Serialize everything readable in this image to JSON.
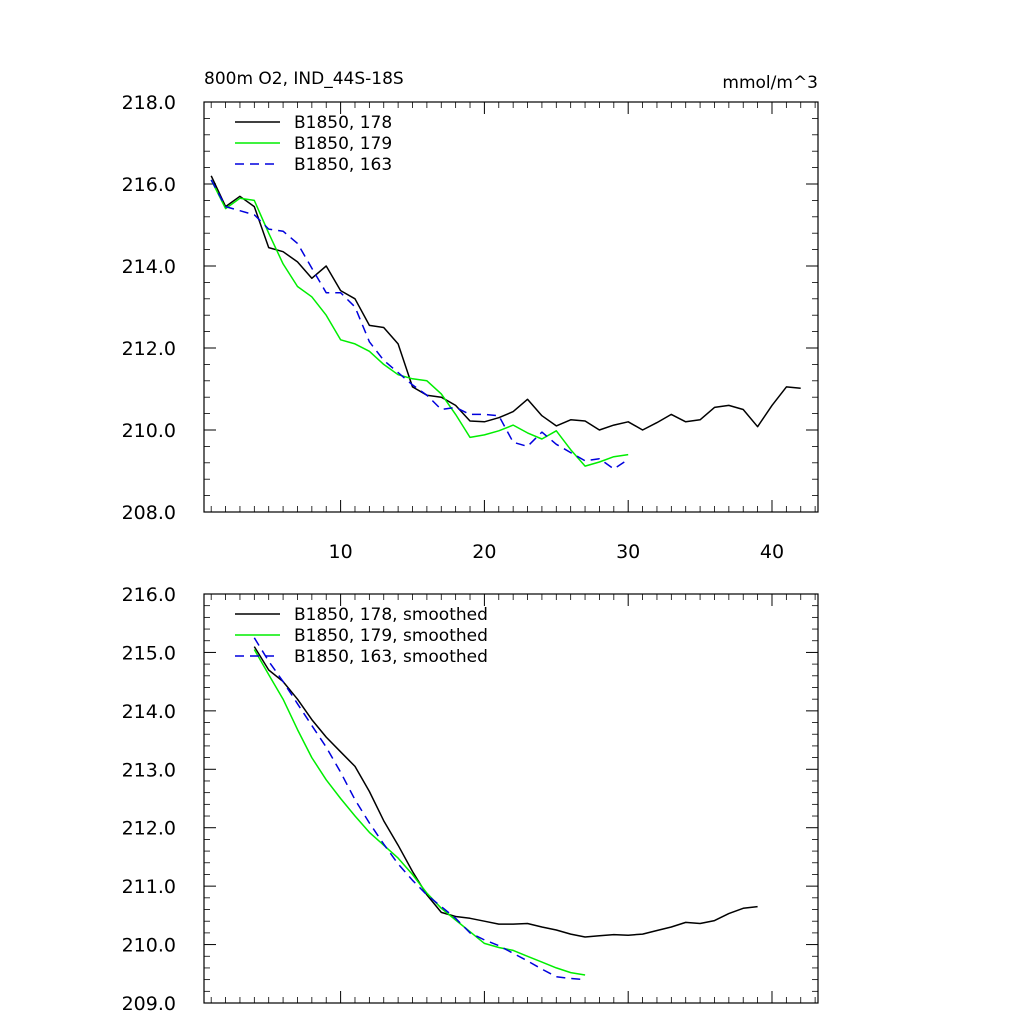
{
  "header": {
    "title": "800m O2, IND_44S-18S",
    "units": "mmol/m^3"
  },
  "colors": {
    "s178": "#000000",
    "s179": "#00ee00",
    "s163": "#0000dd",
    "axis": "#000000"
  },
  "chart_data": [
    {
      "type": "line",
      "title": "800m O2, IND_44S-18S",
      "units": "mmol/m^3",
      "xlim": [
        0.5,
        43.2
      ],
      "ylim": [
        208.0,
        218.0
      ],
      "xticks": [
        10,
        20,
        30,
        40
      ],
      "xtick_labels": [
        "10",
        "20",
        "30",
        "40"
      ],
      "yticks": [
        208.0,
        210.0,
        212.0,
        214.0,
        216.0,
        218.0
      ],
      "ytick_labels": [
        "208.0",
        "210.0",
        "212.0",
        "214.0",
        "216.0",
        "218.0"
      ],
      "legend": "top-left",
      "series": [
        {
          "name": "B1850, 178",
          "color_key": "s178",
          "dash": false,
          "x": [
            1,
            2,
            3,
            4,
            5,
            6,
            7,
            8,
            9,
            10,
            11,
            12,
            13,
            14,
            15,
            16,
            17,
            18,
            19,
            20,
            21,
            22,
            23,
            24,
            25,
            26,
            27,
            28,
            29,
            30,
            31,
            32,
            33,
            34,
            35,
            36,
            37,
            38,
            39,
            40,
            41,
            42
          ],
          "y": [
            216.2,
            215.45,
            215.7,
            215.45,
            214.45,
            214.35,
            214.1,
            213.7,
            214.0,
            213.4,
            213.2,
            212.55,
            212.5,
            212.1,
            211.05,
            210.85,
            210.8,
            210.6,
            210.22,
            210.2,
            210.3,
            210.45,
            210.75,
            210.35,
            210.1,
            210.25,
            210.22,
            210.0,
            210.12,
            210.2,
            210.0,
            210.18,
            210.38,
            210.2,
            210.25,
            210.55,
            210.6,
            210.5,
            210.08,
            210.6,
            211.05,
            211.02
          ]
        },
        {
          "name": "B1850, 179",
          "color_key": "s179",
          "dash": false,
          "x": [
            1,
            2,
            3,
            4,
            5,
            6,
            7,
            8,
            9,
            10,
            11,
            12,
            13,
            14,
            15,
            16,
            17,
            18,
            19,
            20,
            21,
            22,
            23,
            24,
            25,
            26,
            27,
            28,
            29,
            30
          ],
          "y": [
            216.1,
            215.4,
            215.65,
            215.6,
            214.8,
            214.05,
            213.5,
            213.25,
            212.8,
            212.2,
            212.1,
            211.92,
            211.6,
            211.35,
            211.25,
            211.2,
            210.88,
            210.38,
            209.82,
            209.88,
            209.98,
            210.12,
            209.93,
            209.78,
            209.98,
            209.52,
            209.12,
            209.22,
            209.35,
            209.4
          ]
        },
        {
          "name": "B1850, 163",
          "color_key": "s163",
          "dash": true,
          "x": [
            1,
            2,
            3,
            4,
            5,
            6,
            7,
            8,
            9,
            10,
            11,
            12,
            13,
            14,
            15,
            16,
            17,
            18,
            19,
            20,
            21,
            22,
            23,
            24,
            25,
            26,
            27,
            28,
            29,
            30
          ],
          "y": [
            216.1,
            215.45,
            215.35,
            215.25,
            214.9,
            214.85,
            214.55,
            213.95,
            213.35,
            213.35,
            213.0,
            212.15,
            211.7,
            211.4,
            211.1,
            210.85,
            210.5,
            210.55,
            210.38,
            210.38,
            210.35,
            209.7,
            209.6,
            209.95,
            209.65,
            209.45,
            209.25,
            209.3,
            209.05,
            209.28
          ]
        }
      ]
    },
    {
      "type": "line",
      "xlim": [
        0.5,
        43.2
      ],
      "ylim": [
        209.0,
        216.0
      ],
      "xticks": [
        10,
        20,
        30,
        40
      ],
      "yticks": [
        209.0,
        210.0,
        211.0,
        212.0,
        213.0,
        214.0,
        215.0,
        216.0
      ],
      "ytick_labels": [
        "209.0",
        "210.0",
        "211.0",
        "212.0",
        "213.0",
        "214.0",
        "215.0",
        "216.0"
      ],
      "legend": "top-left",
      "series": [
        {
          "name": "B1850, 178, smoothed",
          "color_key": "s178",
          "dash": false,
          "x": [
            4,
            5,
            6,
            7,
            8,
            9,
            10,
            11,
            12,
            13,
            14,
            15,
            16,
            17,
            18,
            19,
            20,
            21,
            22,
            23,
            24,
            25,
            26,
            27,
            28,
            29,
            30,
            31,
            32,
            33,
            34,
            35,
            36,
            37,
            38,
            39
          ],
          "y": [
            215.1,
            214.7,
            214.5,
            214.2,
            213.85,
            213.55,
            213.3,
            213.05,
            212.62,
            212.12,
            211.7,
            211.25,
            210.85,
            210.55,
            210.48,
            210.45,
            210.4,
            210.35,
            210.35,
            210.36,
            210.3,
            210.25,
            210.18,
            210.13,
            210.15,
            210.17,
            210.16,
            210.18,
            210.24,
            210.3,
            210.38,
            210.36,
            210.41,
            210.53,
            210.62,
            210.65
          ]
        },
        {
          "name": "B1850, 179, smoothed",
          "color_key": "s179",
          "dash": false,
          "x": [
            4,
            5,
            6,
            7,
            8,
            9,
            10,
            11,
            12,
            13,
            14,
            15,
            16,
            17,
            18,
            19,
            20,
            21,
            22,
            23,
            24,
            25,
            26,
            27
          ],
          "y": [
            215.05,
            214.62,
            214.2,
            213.68,
            213.2,
            212.82,
            212.5,
            212.2,
            211.92,
            211.7,
            211.48,
            211.2,
            210.88,
            210.62,
            210.42,
            210.22,
            210.02,
            209.95,
            209.9,
            209.8,
            209.7,
            209.6,
            209.52,
            209.48
          ]
        },
        {
          "name": "B1850, 163, smoothed",
          "color_key": "s163",
          "dash": true,
          "x": [
            4,
            5,
            6,
            7,
            8,
            9,
            10,
            11,
            12,
            13,
            14,
            15,
            16,
            17,
            18,
            19,
            20,
            21,
            22,
            23,
            24,
            25,
            26,
            27
          ],
          "y": [
            215.25,
            214.85,
            214.5,
            214.12,
            213.75,
            213.38,
            212.95,
            212.48,
            212.08,
            211.72,
            211.38,
            211.1,
            210.85,
            210.65,
            210.45,
            210.2,
            210.08,
            209.98,
            209.85,
            209.72,
            209.58,
            209.45,
            209.42,
            209.4
          ]
        }
      ]
    }
  ]
}
